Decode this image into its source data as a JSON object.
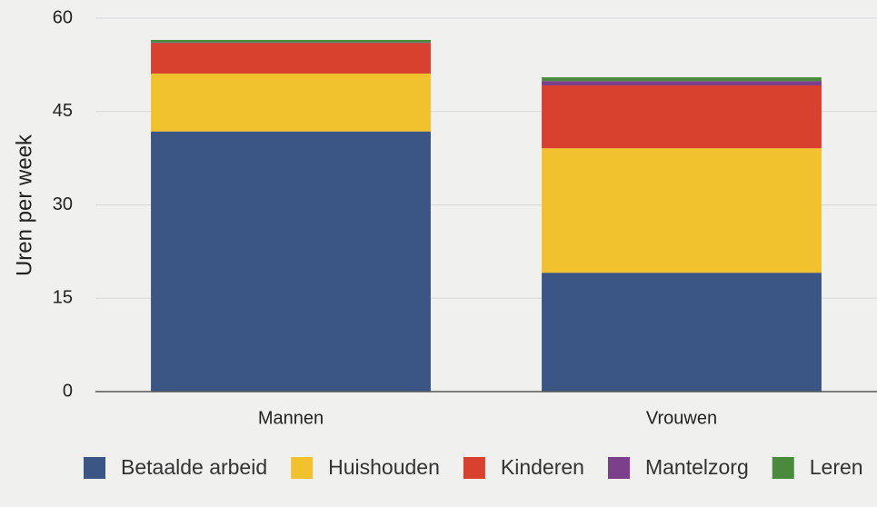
{
  "chart_data": {
    "type": "stacked_bar",
    "y_label": "Uren per week",
    "categories": [
      "Mannen",
      "Vrouwen"
    ],
    "series": [
      {
        "name": "Betaalde arbeid",
        "color": "#3b5584",
        "values": [
          41.8,
          19.1
        ]
      },
      {
        "name": "Huishouden",
        "color": "#f2c12e",
        "values": [
          9.3,
          20.0
        ]
      },
      {
        "name": "Kinderen",
        "color": "#d9412f",
        "values": [
          4.9,
          10.1
        ]
      },
      {
        "name": "Mantelzorg",
        "color": "#7b3f8c",
        "values": [
          0.1,
          0.7
        ]
      },
      {
        "name": "Leren",
        "color": "#4a8a3c",
        "values": [
          0.4,
          0.6
        ]
      }
    ],
    "ylim": [
      0,
      60
    ],
    "yticks": [
      0,
      15,
      30,
      45,
      60
    ],
    "grid": true,
    "legend": "bottom"
  }
}
